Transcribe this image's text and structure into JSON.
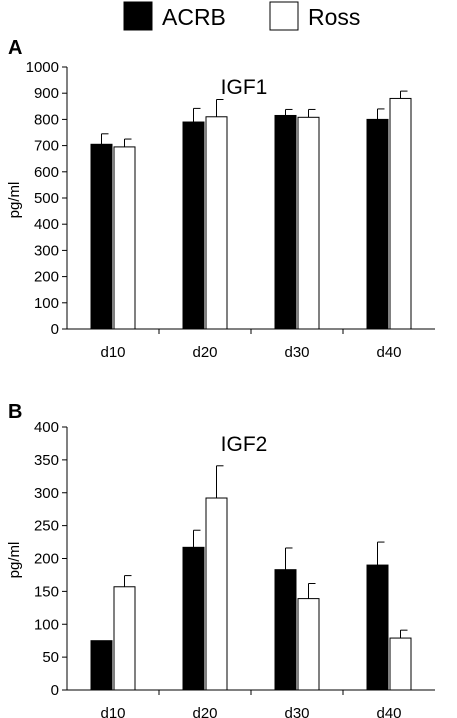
{
  "legend": {
    "position": "top-center",
    "items": [
      {
        "label": "ACRB",
        "fill": "#000000"
      },
      {
        "label": "Ross",
        "fill": "#ffffff"
      }
    ]
  },
  "panels": [
    "A",
    "B"
  ],
  "chart_data": [
    {
      "type": "bar",
      "panel_label": "A",
      "title": "IGF1",
      "ylabel": "pg/ml",
      "xlabel": "",
      "ylim": [
        0,
        1000
      ],
      "yticks": [
        0,
        100,
        200,
        300,
        400,
        500,
        600,
        700,
        800,
        900,
        1000
      ],
      "categories": [
        "d10",
        "d20",
        "d30",
        "d40"
      ],
      "grid": false,
      "series": [
        {
          "name": "ACRB",
          "color": "#000000",
          "values": [
            705,
            790,
            815,
            800
          ],
          "errors": [
            40,
            52,
            23,
            40
          ]
        },
        {
          "name": "Ross",
          "color": "#ffffff",
          "values": [
            695,
            810,
            808,
            880
          ],
          "errors": [
            30,
            66,
            30,
            28
          ]
        }
      ]
    },
    {
      "type": "bar",
      "panel_label": "B",
      "title": "IGF2",
      "ylabel": "pg/ml",
      "xlabel": "",
      "ylim": [
        0,
        400
      ],
      "yticks": [
        0,
        50,
        100,
        150,
        200,
        250,
        300,
        350,
        400
      ],
      "categories": [
        "d10",
        "d20",
        "d30",
        "d40"
      ],
      "grid": false,
      "series": [
        {
          "name": "ACRB",
          "color": "#000000",
          "values": [
            75,
            217,
            183,
            190
          ],
          "errors": [
            0,
            26,
            33,
            35
          ]
        },
        {
          "name": "Ross",
          "color": "#ffffff",
          "values": [
            157,
            292,
            139,
            79
          ],
          "errors": [
            17,
            49,
            23,
            12
          ]
        }
      ]
    }
  ]
}
